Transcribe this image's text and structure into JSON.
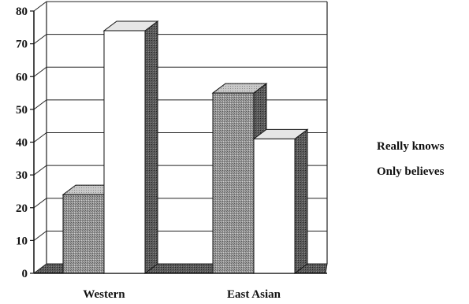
{
  "chart_data": {
    "type": "bar",
    "style": "3d-clustered",
    "categories": [
      "Western",
      "East Asian"
    ],
    "series": [
      {
        "name": "Really knows",
        "values": [
          24,
          55
        ],
        "fill": "#8a8a8a",
        "pattern": "dotted-gray"
      },
      {
        "name": "Only believes",
        "values": [
          74,
          41
        ],
        "fill": "#ffffff",
        "pattern": "white"
      }
    ],
    "ylim": [
      0,
      80
    ],
    "yticks": [
      0,
      10,
      20,
      30,
      40,
      50,
      60,
      70,
      80
    ],
    "title": "",
    "xlabel": "",
    "ylabel": "",
    "grid": true,
    "legend_position": "right",
    "colors": {
      "dark_fill": "#8a8a8a",
      "dark_side": "#4a4a4a",
      "dark_top": "#b5b5b5",
      "light_fill": "#ffffff",
      "light_side": "#3a3a3a",
      "light_top": "#dcdcdc"
    }
  }
}
